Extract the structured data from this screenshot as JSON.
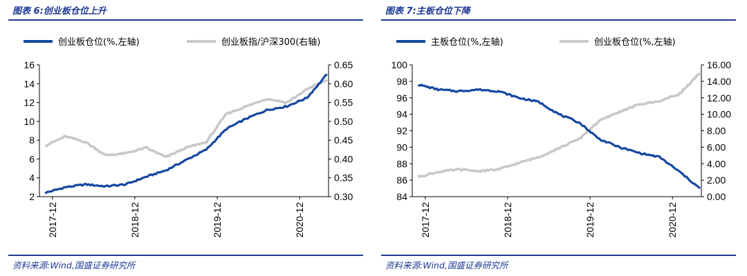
{
  "colors": {
    "title": "#1f3a93",
    "series_blue": "#1447a0",
    "series_gray": "#c8c8c8"
  },
  "left": {
    "title": "图表 6:创业板仓位上升",
    "source": "资料来源:Wind,国盛证券研究所",
    "legend": [
      "创业板仓位(%,左轴)",
      "创业板指/沪深300(右轴)"
    ],
    "y_left_ticks": [
      "2",
      "4",
      "6",
      "8",
      "10",
      "12",
      "14",
      "16"
    ],
    "y_right_ticks": [
      "0.30",
      "0.35",
      "0.40",
      "0.45",
      "0.50",
      "0.55",
      "0.60",
      "0.65"
    ],
    "x_ticks": [
      "2017-12",
      "2018-12",
      "2019-12",
      "2020-12"
    ]
  },
  "right": {
    "title": "图表 7:主板仓位下降",
    "source": "资料来源:Wind,国盛证券研究所",
    "legend": [
      "主板仓位(%,左轴)",
      "创业板仓位(%,左轴)"
    ],
    "y_left_ticks": [
      "84",
      "86",
      "88",
      "90",
      "92",
      "94",
      "96",
      "98",
      "100"
    ],
    "y_right_ticks": [
      "0.00",
      "2.00",
      "4.00",
      "6.00",
      "8.00",
      "10.00",
      "12.00",
      "14.00",
      "16.00"
    ],
    "x_ticks": [
      "2017-12",
      "2018-12",
      "2019-12",
      "2020-12"
    ]
  },
  "chart_data": [
    {
      "type": "line",
      "title": "创业板仓位上升",
      "x": [
        "2017-12",
        "2018-03",
        "2018-06",
        "2018-09",
        "2018-12",
        "2019-03",
        "2019-06",
        "2019-09",
        "2019-12",
        "2020-03",
        "2020-06",
        "2020-09",
        "2020-12",
        "2021-03",
        "2021-06"
      ],
      "ylim": [
        2,
        16
      ],
      "y2lim": [
        0.3,
        0.65
      ],
      "series": [
        {
          "name": "创业板仓位(%,左轴)",
          "axis": "left",
          "values": [
            2.4,
            3.0,
            3.3,
            3.1,
            3.3,
            4.1,
            4.8,
            5.9,
            7.0,
            9.2,
            10.3,
            11.2,
            11.6,
            12.5,
            15.0
          ]
        },
        {
          "name": "创业板指/沪深300(右轴)",
          "axis": "right",
          "values": [
            0.435,
            0.46,
            0.445,
            0.41,
            0.415,
            0.43,
            0.405,
            0.43,
            0.445,
            0.52,
            0.54,
            0.56,
            0.55,
            0.585,
            0.61
          ]
        }
      ]
    },
    {
      "type": "line",
      "title": "主板仓位下降",
      "x": [
        "2017-12",
        "2018-03",
        "2018-06",
        "2018-09",
        "2018-12",
        "2019-03",
        "2019-06",
        "2019-09",
        "2019-12",
        "2020-03",
        "2020-06",
        "2020-09",
        "2020-12",
        "2021-03",
        "2021-06"
      ],
      "ylim": [
        84,
        100
      ],
      "y2lim": [
        0,
        16
      ],
      "series": [
        {
          "name": "主板仓位(%,左轴)",
          "axis": "left",
          "values": [
            97.6,
            97.0,
            96.8,
            97.0,
            96.8,
            96.0,
            95.5,
            94.0,
            93.0,
            91.0,
            90.0,
            89.3,
            88.8,
            87.0,
            85.0
          ]
        },
        {
          "name": "创业板仓位(%,左轴)",
          "axis": "right",
          "values": [
            2.4,
            3.0,
            3.3,
            3.1,
            3.3,
            4.1,
            4.8,
            5.9,
            7.0,
            9.2,
            10.3,
            11.2,
            11.6,
            12.5,
            15.0
          ]
        }
      ]
    }
  ]
}
